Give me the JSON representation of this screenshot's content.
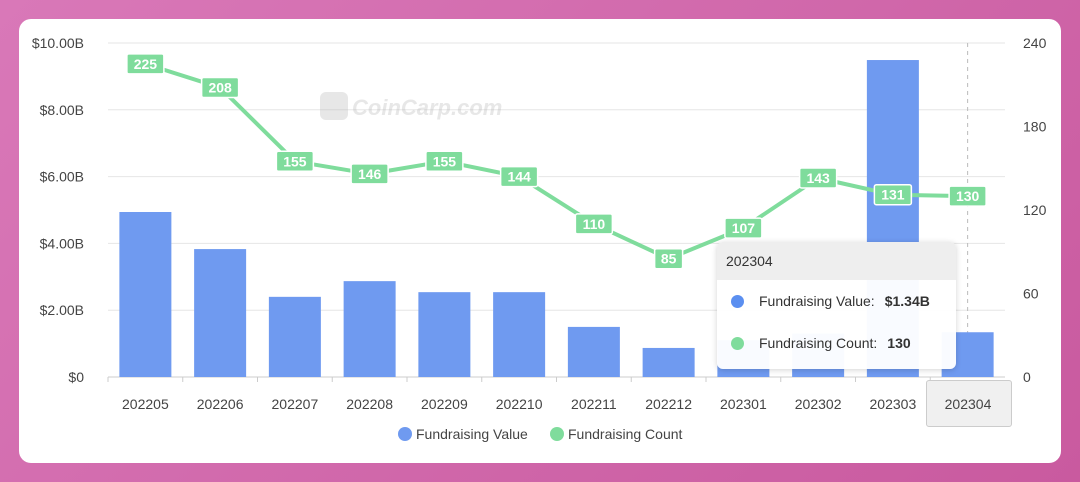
{
  "watermark": "CoinCarp.com",
  "chart_data": {
    "type": "bar+line",
    "categories": [
      "202205",
      "202206",
      "202207",
      "202208",
      "202209",
      "202210",
      "202211",
      "202212",
      "202301",
      "202302",
      "202303",
      "202304"
    ],
    "series": [
      {
        "name": "Fundraising Value",
        "type": "bar",
        "axis": "left",
        "unit": "B USD",
        "color": "#6f9af0",
        "values": [
          4.94,
          3.83,
          2.4,
          2.87,
          2.54,
          2.54,
          1.5,
          0.87,
          1.1,
          1.3,
          9.49,
          1.34
        ]
      },
      {
        "name": "Fundraising Count",
        "type": "line",
        "axis": "right",
        "color": "#7fdc9c",
        "values": [
          225,
          208,
          155,
          146,
          155,
          144,
          110,
          85,
          107,
          143,
          131,
          130
        ]
      }
    ],
    "left_axis": {
      "ticks": [
        "$0",
        "$2.00B",
        "$4.00B",
        "$6.00B",
        "$8.00B",
        "$10.00B"
      ],
      "range": [
        0,
        10
      ]
    },
    "right_axis": {
      "ticks": [
        "0",
        "60",
        "120",
        "180",
        "240"
      ],
      "range": [
        0,
        240
      ]
    },
    "legend": {
      "placement": "bottom",
      "items": [
        "Fundraising Value",
        "Fundraising Count"
      ]
    },
    "grid": true
  },
  "tooltip": {
    "title": "202304",
    "rows": [
      {
        "label": "Fundraising Value:",
        "value": "$1.34B",
        "color": "#5b8ff0"
      },
      {
        "label": "Fundraising Count:",
        "value": "130",
        "color": "#7fdc9c"
      }
    ]
  }
}
